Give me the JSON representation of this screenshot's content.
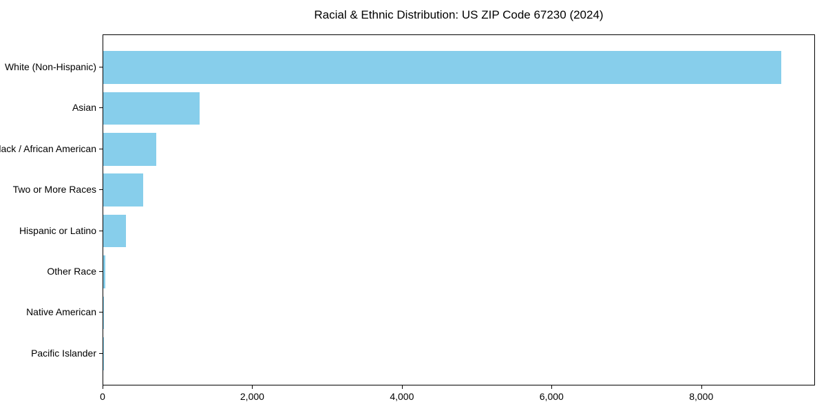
{
  "chart_data": {
    "type": "bar",
    "orientation": "horizontal",
    "title": "Racial & Ethnic Distribution: US ZIP Code 67230 (2024)",
    "xlabel": "",
    "ylabel": "",
    "categories": [
      "White (Non-Hispanic)",
      "Asian",
      "Black / African American",
      "Two or More Races",
      "Hispanic or Latino",
      "Other Race",
      "Native American",
      "Pacific Islander"
    ],
    "values": [
      9080,
      1290,
      710,
      530,
      300,
      30,
      10,
      5
    ],
    "xlim": [
      0,
      9520
    ],
    "xticks": [
      {
        "value": 0,
        "label": "0"
      },
      {
        "value": 2000,
        "label": "2,000"
      },
      {
        "value": 4000,
        "label": "4,000"
      },
      {
        "value": 6000,
        "label": "6,000"
      },
      {
        "value": 8000,
        "label": "8,000"
      }
    ],
    "bar_color": "#87CEEB",
    "frame_color": "#000000",
    "text_color": "#000000",
    "grid": false,
    "legend": null
  }
}
